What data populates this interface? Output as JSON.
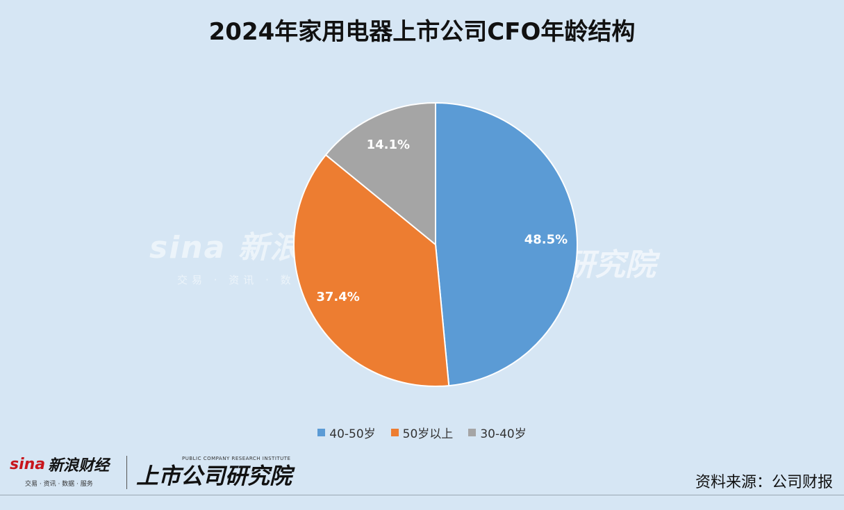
{
  "chart_data": {
    "type": "pie",
    "title": "2024年家用电器上市公司CFO年龄结构",
    "slices": [
      {
        "label": "40-50岁",
        "value": 48.5,
        "display": "48.5%",
        "color": "#5b9bd5"
      },
      {
        "label": "50岁以上",
        "value": 37.4,
        "display": "37.4%",
        "color": "#ed7d31"
      },
      {
        "label": "30-40岁",
        "value": 14.1,
        "display": "14.1%",
        "color": "#a5a5a5"
      }
    ],
    "legend_position": "bottom",
    "start_angle": "12 o'clock, clockwise"
  },
  "watermark": {
    "logo": "sina",
    "name": "新浪",
    "sub": "交易 · 资讯 · 数",
    "right": "研究院"
  },
  "footer": {
    "sina_logo": "sina",
    "sina_name": "新浪财经",
    "sina_tagline": "交易 · 资讯 · 数据 · 服务",
    "institute": "上市公司研究院",
    "institute_en": "PUBLIC COMPANY RESEARCH INSTITUTE",
    "source": "资料来源：公司财报"
  }
}
